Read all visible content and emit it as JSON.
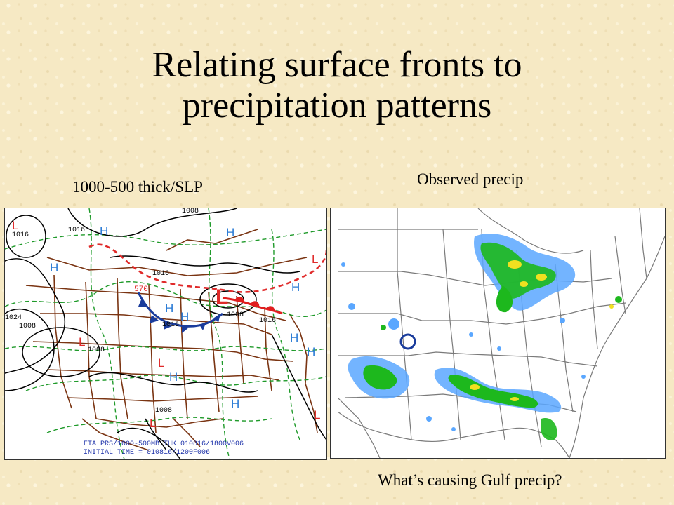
{
  "slide": {
    "title_line1": "Relating surface fronts to",
    "title_line2": "precipitation patterns",
    "left_caption": "1000-500 thick/SLP",
    "right_caption": "Observed precip",
    "bottom_caption": "What’s causing Gulf precip?"
  },
  "left_map": {
    "isobar_labels": [
      "1008",
      "1016",
      "1016",
      "1016",
      "1016",
      "1008",
      "1016",
      "1024",
      "1008",
      "1008",
      "1008"
    ],
    "thickness_label": "570",
    "pressure_centers": [
      "L",
      "H",
      "H",
      "H",
      "L",
      "L",
      "H",
      "H",
      "H",
      "L",
      "L",
      "H",
      "H",
      "H",
      "H",
      "L",
      "L"
    ],
    "footer_line1": "ETA PRS/1000-500MB THK 010816/1800V006",
    "footer_line2": "INITIAL TIME = 010816/1200F006"
  },
  "colors": {
    "background": "#f6e9c4",
    "isobar": "#000000",
    "thickness": "#1f9a2a",
    "borders": "#7a3412",
    "high_center": "#2a7bd5",
    "low_center": "#e02a2a",
    "cold_front": "#1a3c9c",
    "warm_front": "#e01e1e",
    "footer_text": "#1a2fa8",
    "precip_light": "#5aa7ff",
    "precip_moderate": "#1db81d",
    "precip_heavy": "#f0e020"
  }
}
